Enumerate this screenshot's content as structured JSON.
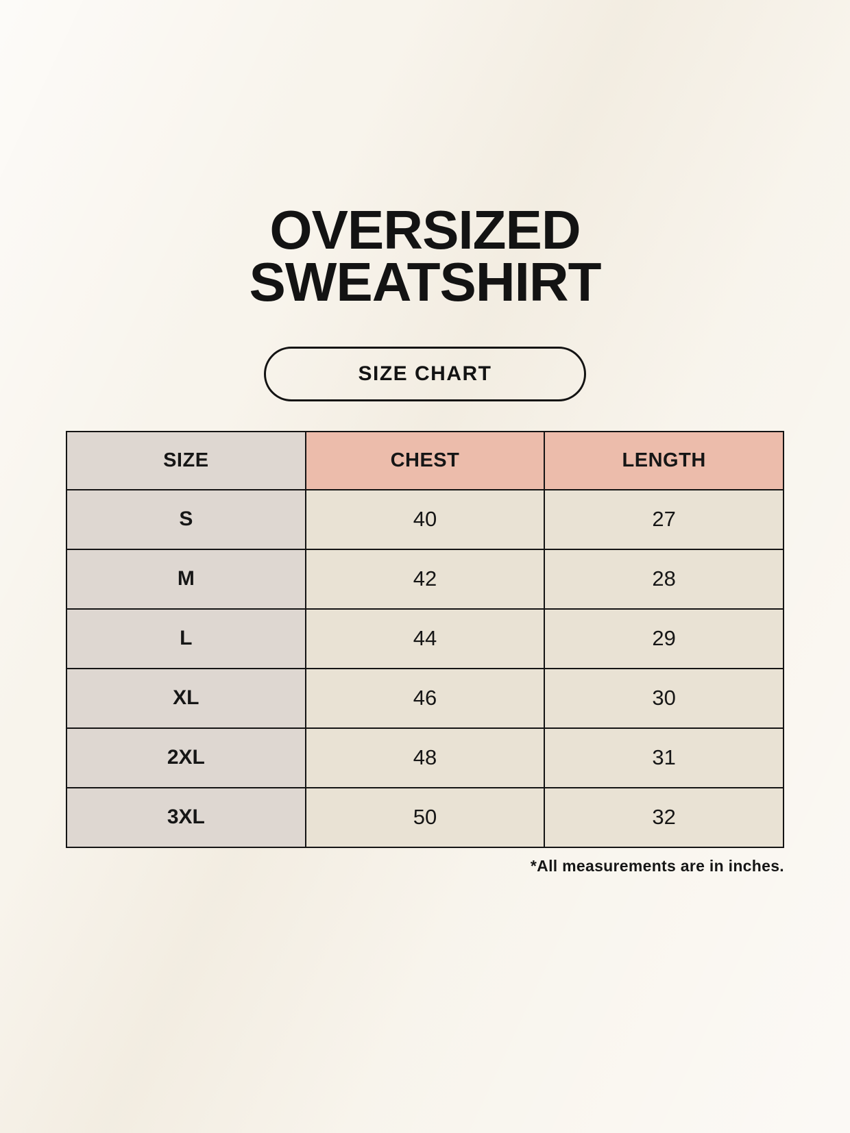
{
  "page": {
    "title_line1": "OVERSIZED",
    "title_line2": "SWEATSHIRT",
    "size_chart_button": "SIZE CHART",
    "footnote": "*All measurements are in inches."
  },
  "colors": {
    "background": "#f8f4ec",
    "header_accent": "#ecbcab",
    "size_column": "#ded7d1",
    "cell_background": "#e9e2d4",
    "border": "#141414",
    "text": "#161616"
  },
  "chart_data": {
    "type": "table",
    "title": "OVERSIZED SWEATSHIRT",
    "columns": [
      "SIZE",
      "CHEST",
      "LENGTH"
    ],
    "rows": [
      [
        "S",
        "40",
        "27"
      ],
      [
        "M",
        "42",
        "28"
      ],
      [
        "L",
        "44",
        "29"
      ],
      [
        "XL",
        "46",
        "30"
      ],
      [
        "2XL",
        "48",
        "31"
      ],
      [
        "3XL",
        "50",
        "32"
      ]
    ],
    "note": "*All measurements are in inches."
  }
}
